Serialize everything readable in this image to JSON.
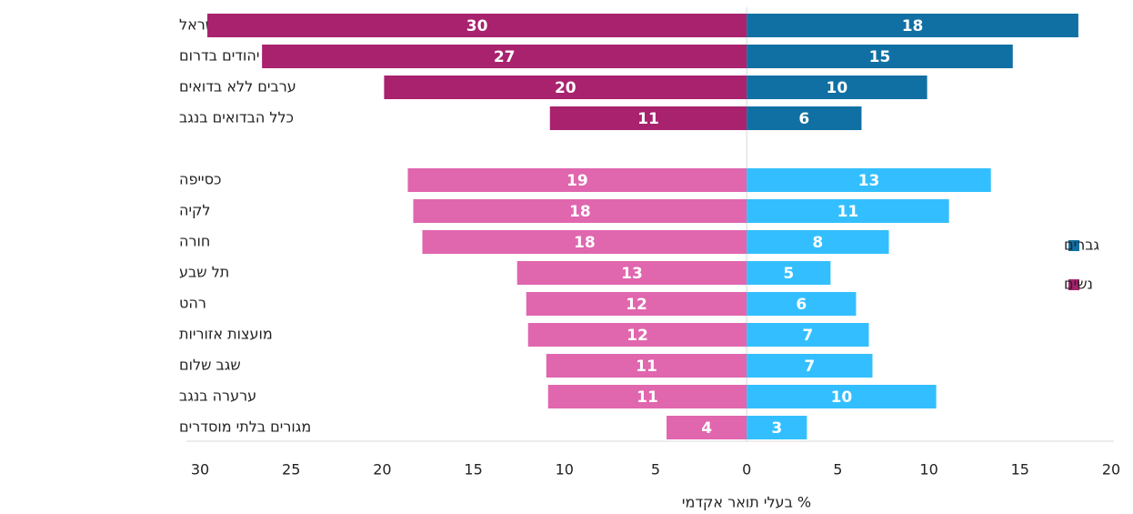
{
  "chart_data": {
    "type": "butterfly-bar",
    "x_label": "% בעלי תואר אקדמי",
    "categories": [
      "כלל ישראל",
      "יהודים בדרום",
      "ערבים ללא בדואים",
      "כלל הבדואים בנגב",
      null,
      "כסייפה",
      "לקיה",
      "חורה",
      "תל שבע",
      "רהט",
      "מועצות אזוריות",
      "שגב שלום",
      "ערערה בנגב",
      "מגורים בלתי מוסדרים"
    ],
    "series": [
      {
        "name": "נשים",
        "side": "left",
        "color": "#a8226e",
        "colors": [
          "#a8226e",
          "#a8226e",
          "#a8226e",
          "#a8226e",
          null,
          "#e066ae",
          "#e066ae",
          "#e066ae",
          "#e066ae",
          "#e066ae",
          "#e066ae",
          "#e066ae",
          "#e066ae",
          "#e066ae"
        ],
        "values": [
          29.6,
          26.6,
          19.9,
          10.8,
          null,
          18.6,
          18.3,
          17.8,
          12.6,
          12.1,
          12.0,
          11.0,
          10.9,
          4.4
        ],
        "value_labels": [
          "30",
          "27",
          "20",
          "11",
          null,
          "19",
          "18",
          "18",
          "13",
          "12",
          "12",
          "11",
          "11",
          "4"
        ]
      },
      {
        "name": "גברים",
        "side": "right",
        "color": "#1170a3",
        "colors": [
          "#1170a3",
          "#1170a3",
          "#1170a3",
          "#1170a3",
          null,
          "#33bfff",
          "#33bfff",
          "#33bfff",
          "#33bfff",
          "#33bfff",
          "#33bfff",
          "#33bfff",
          "#33bfff",
          "#33bfff"
        ],
        "values": [
          18.2,
          14.6,
          9.9,
          6.3,
          null,
          13.4,
          11.1,
          7.8,
          4.6,
          6.0,
          6.7,
          6.9,
          10.4,
          3.3
        ],
        "value_labels": [
          "18",
          "15",
          "10",
          "6",
          null,
          "13",
          "11",
          "8",
          "5",
          "6",
          "7",
          "7",
          "10",
          "3"
        ]
      }
    ],
    "xlim": [
      -30,
      20
    ],
    "xticks": [
      {
        "value": -30,
        "label": "30"
      },
      {
        "value": -25,
        "label": "25"
      },
      {
        "value": -20,
        "label": "20"
      },
      {
        "value": -15,
        "label": "15"
      },
      {
        "value": -10,
        "label": "10"
      },
      {
        "value": -5,
        "label": "5"
      },
      0,
      5,
      10,
      15,
      20
    ],
    "legend": "right"
  }
}
